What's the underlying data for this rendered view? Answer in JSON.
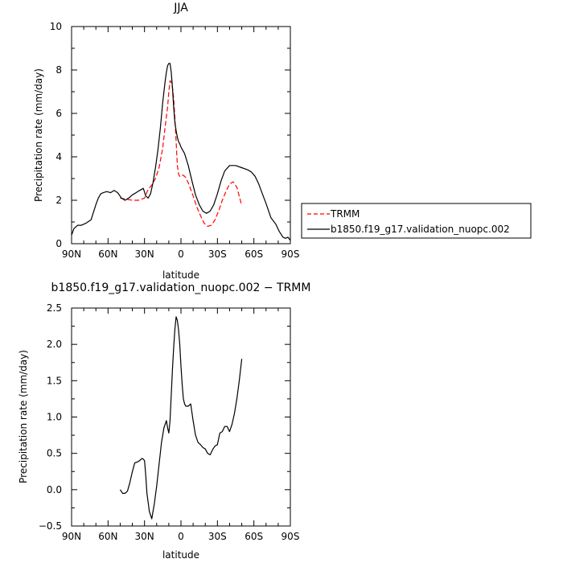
{
  "chart_data": [
    {
      "type": "line",
      "title": "JJA",
      "xlabel": "latitude",
      "ylabel": "Precipitation rate (mm/day)",
      "xlim": [
        90,
        -90
      ],
      "ylim": [
        0,
        10
      ],
      "x_ticks": [
        90,
        60,
        30,
        0,
        -30,
        -60,
        -90
      ],
      "x_tick_labels": [
        "90N",
        "60N",
        "30N",
        "0",
        "30S",
        "60S",
        "90S"
      ],
      "y_ticks": [
        0,
        2,
        4,
        6,
        8,
        10
      ],
      "y_tick_labels": [
        "0",
        "2",
        "4",
        "6",
        "8",
        "10"
      ],
      "legend": "right",
      "series": [
        {
          "name": "TRMM",
          "color": "#ff0000",
          "dash": "dashed",
          "x": [
            50,
            45,
            40,
            35,
            30,
            27,
            24,
            21,
            18,
            15,
            13,
            11,
            10,
            9,
            8,
            7,
            6,
            5,
            4,
            3,
            2,
            1,
            0,
            -2,
            -4,
            -6,
            -8,
            -10,
            -13,
            -16,
            -19,
            -22,
            -25,
            -28,
            -31,
            -34,
            -37,
            -40,
            -43,
            -46,
            -50
          ],
          "y": [
            2.1,
            2.05,
            2.0,
            2.0,
            2.1,
            2.5,
            2.7,
            3.0,
            3.5,
            4.4,
            5.4,
            6.3,
            7.0,
            7.5,
            7.45,
            7.2,
            6.7,
            5.8,
            4.7,
            3.6,
            3.2,
            3.1,
            3.15,
            3.15,
            3.05,
            2.8,
            2.5,
            2.2,
            1.7,
            1.3,
            0.95,
            0.8,
            0.85,
            1.1,
            1.5,
            2.0,
            2.4,
            2.75,
            2.85,
            2.6,
            1.75
          ]
        },
        {
          "name": "b1850.f19_g17.validation_nuopc.002",
          "color": "#000000",
          "dash": "solid",
          "x": [
            90,
            88,
            85,
            82,
            78,
            74,
            70,
            68,
            66,
            64,
            61,
            58,
            55,
            52,
            49,
            46,
            43,
            40,
            37,
            34,
            31,
            29,
            27,
            25,
            23,
            21,
            19,
            17,
            15,
            13,
            12,
            11,
            10,
            9,
            8,
            7,
            6,
            5,
            4,
            3,
            2,
            1,
            0,
            -3,
            -6,
            -9,
            -12,
            -15,
            -18,
            -21,
            -24,
            -27,
            -30,
            -33,
            -36,
            -40,
            -45,
            -50,
            -55,
            -58,
            -61,
            -64,
            -67,
            -70,
            -74,
            -78,
            -81,
            -84,
            -86,
            -88,
            -90
          ],
          "y": [
            0.4,
            0.7,
            0.85,
            0.85,
            0.95,
            1.1,
            1.8,
            2.1,
            2.3,
            2.35,
            2.4,
            2.35,
            2.45,
            2.35,
            2.1,
            2.0,
            2.1,
            2.25,
            2.35,
            2.45,
            2.55,
            2.2,
            2.1,
            2.3,
            2.8,
            3.5,
            4.3,
            5.3,
            6.5,
            7.5,
            7.9,
            8.2,
            8.3,
            8.3,
            7.9,
            7.2,
            6.3,
            5.6,
            5.2,
            4.9,
            4.7,
            4.6,
            4.45,
            4.15,
            3.6,
            2.9,
            2.25,
            1.8,
            1.5,
            1.4,
            1.5,
            1.8,
            2.3,
            2.9,
            3.35,
            3.6,
            3.6,
            3.5,
            3.4,
            3.3,
            3.1,
            2.75,
            2.3,
            1.85,
            1.2,
            0.9,
            0.55,
            0.3,
            0.25,
            0.3,
            0.15
          ]
        }
      ]
    },
    {
      "type": "line",
      "title": "b1850.f19_g17.validation_nuopc.002 − TRMM",
      "xlabel": "latitude",
      "ylabel": "Precipitation rate (mm/day)",
      "xlim": [
        90,
        -90
      ],
      "ylim": [
        -0.5,
        2.5
      ],
      "x_ticks": [
        90,
        60,
        30,
        0,
        -30,
        -60,
        -90
      ],
      "x_tick_labels": [
        "90N",
        "60N",
        "30N",
        "0",
        "30S",
        "60S",
        "90S"
      ],
      "y_ticks": [
        -0.5,
        0.0,
        0.5,
        1.0,
        1.5,
        2.0,
        2.5
      ],
      "y_tick_labels": [
        "−0.5",
        "0.0",
        "0.5",
        "1.0",
        "1.5",
        "2.0",
        "2.5"
      ],
      "series": [
        {
          "color": "#000000",
          "x": [
            50,
            48,
            46,
            44,
            42,
            40,
            38,
            36,
            34,
            32,
            31,
            30,
            29,
            28,
            26,
            24,
            22,
            20,
            18,
            16,
            14,
            12,
            11,
            10,
            9,
            8,
            7,
            6,
            5,
            4,
            3,
            2,
            1,
            0,
            -1,
            -2,
            -3,
            -4,
            -6,
            -8,
            -10,
            -12,
            -14,
            -16,
            -18,
            -20,
            -22,
            -24,
            -26,
            -28,
            -30,
            -32,
            -34,
            -36,
            -38,
            -40,
            -42,
            -44,
            -46,
            -48,
            -50
          ],
          "y": [
            0.0,
            -0.05,
            -0.05,
            -0.02,
            0.1,
            0.25,
            0.37,
            0.38,
            0.4,
            0.43,
            0.42,
            0.4,
            0.2,
            -0.05,
            -0.3,
            -0.4,
            -0.2,
            0.05,
            0.35,
            0.65,
            0.85,
            0.95,
            0.85,
            0.78,
            0.95,
            1.3,
            1.65,
            1.95,
            2.2,
            2.38,
            2.33,
            2.2,
            2.0,
            1.7,
            1.45,
            1.25,
            1.18,
            1.15,
            1.15,
            1.18,
            0.95,
            0.75,
            0.65,
            0.62,
            0.58,
            0.56,
            0.5,
            0.48,
            0.55,
            0.6,
            0.62,
            0.78,
            0.8,
            0.87,
            0.87,
            0.8,
            0.9,
            1.05,
            1.25,
            1.5,
            1.8
          ]
        }
      ]
    }
  ]
}
